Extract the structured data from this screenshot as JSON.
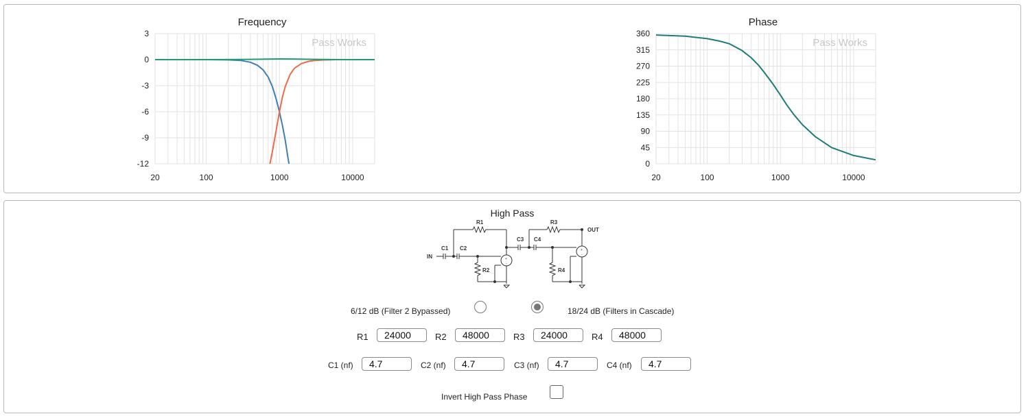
{
  "chart_data": [
    {
      "type": "line",
      "title": "Frequency",
      "watermark": "Pass Works",
      "x_scale": "log",
      "xlim": [
        20,
        20000
      ],
      "ylim": [
        -12,
        3
      ],
      "x_ticks": [
        20,
        100,
        1000,
        10000
      ],
      "x_tick_labels": [
        "20",
        "100",
        "1000",
        "10000"
      ],
      "y_ticks": [
        3,
        0,
        -3,
        -6,
        -9,
        -12
      ],
      "y_tick_labels": [
        "3",
        "0",
        "-3",
        "-6",
        "-9",
        "-12"
      ],
      "grid": true,
      "series": [
        {
          "color": "#3d7fb5",
          "x": [
            20,
            100,
            200,
            300,
            400,
            500,
            600,
            700,
            800,
            900,
            1000,
            1100,
            1200,
            1300,
            1350
          ],
          "y": [
            0,
            0,
            -0.03,
            -0.1,
            -0.3,
            -0.65,
            -1.2,
            -2.0,
            -3.1,
            -4.5,
            -6.0,
            -7.6,
            -9.3,
            -11.2,
            -12
          ]
        },
        {
          "color": "#ee6a4a",
          "x": [
            740,
            800,
            900,
            1000,
            1100,
            1200,
            1400,
            1600,
            2000,
            2500,
            3000,
            4000,
            5000,
            6000,
            10000,
            20000
          ],
          "y": [
            -12,
            -10.6,
            -8.2,
            -6.0,
            -4.3,
            -3.1,
            -1.7,
            -1.0,
            -0.45,
            -0.2,
            -0.1,
            -0.04,
            -0.02,
            0,
            0,
            0
          ]
        },
        {
          "color": "#1f9a74",
          "x": [
            20,
            200,
            400,
            700,
            1000,
            1500,
            2500,
            5000,
            20000
          ],
          "y": [
            0,
            0.01,
            0.03,
            0.06,
            0.08,
            0.07,
            0.04,
            0.01,
            0
          ]
        }
      ]
    },
    {
      "type": "line",
      "title": "Phase",
      "watermark": "Pass Works",
      "x_scale": "log",
      "xlim": [
        20,
        20000
      ],
      "ylim": [
        0,
        360
      ],
      "x_ticks": [
        20,
        100,
        1000,
        10000
      ],
      "x_tick_labels": [
        "20",
        "100",
        "1000",
        "10000"
      ],
      "y_ticks": [
        360,
        315,
        270,
        225,
        180,
        135,
        90,
        45,
        0
      ],
      "y_tick_labels": [
        "360",
        "315",
        "270",
        "225",
        "180",
        "135",
        "90",
        "45",
        "0"
      ],
      "grid": true,
      "series": [
        {
          "color": "#1f7a78",
          "x": [
            20,
            50,
            100,
            150,
            200,
            300,
            400,
            500,
            600,
            700,
            800,
            1000,
            1200,
            1500,
            2000,
            3000,
            5000,
            10000,
            20000
          ],
          "y": [
            356,
            353,
            346,
            339,
            332,
            313,
            293,
            273,
            253,
            235,
            219,
            190,
            165,
            138,
            108,
            75,
            45,
            23,
            11
          ]
        }
      ]
    }
  ],
  "filter": {
    "title": "High Pass",
    "schematic": {
      "in_label": "IN",
      "out_label": "OUT",
      "r1": "R1",
      "r2": "R2",
      "r3": "R3",
      "r4": "R4",
      "c1": "C1",
      "c2": "C2",
      "c3": "C3",
      "c4": "C4",
      "plus": "+",
      "minus": "-"
    },
    "mode_bypass_label": "6/12 dB (Filter 2 Bypassed)",
    "mode_cascade_label": "18/24 dB (Filters in Cascade)",
    "mode_selected": "cascade",
    "resistors": [
      {
        "label": "R1",
        "value": "24000"
      },
      {
        "label": "R2",
        "value": "48000"
      },
      {
        "label": "R3",
        "value": "24000"
      },
      {
        "label": "R4",
        "value": "48000"
      }
    ],
    "capacitors": [
      {
        "label": "C1 (nf)",
        "value": "4.7"
      },
      {
        "label": "C2 (nf)",
        "value": "4.7"
      },
      {
        "label": "C3 (nf)",
        "value": "4.7"
      },
      {
        "label": "C4 (nf)",
        "value": "4.7"
      }
    ],
    "invert_label": "Invert High Pass Phase",
    "invert_checked": false
  }
}
